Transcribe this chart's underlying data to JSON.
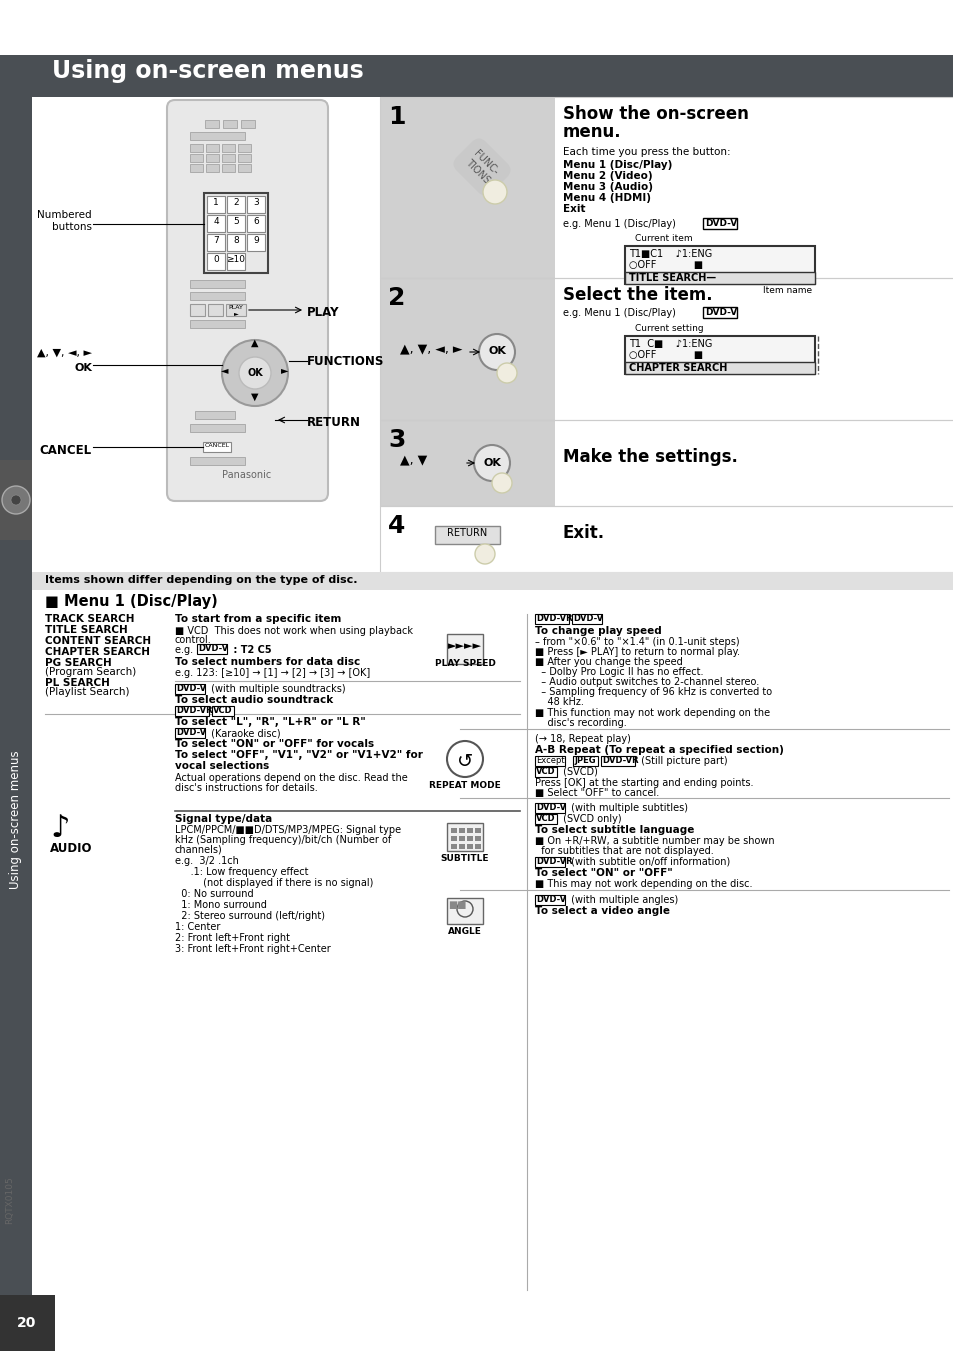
{
  "title": "Using on-screen menus",
  "title_bg": "#4a4f54",
  "title_color": "#ffffff",
  "page_bg": "#ffffff",
  "sidebar_color": "#4a4f54",
  "sidebar_text": "Using on-screen menus",
  "step1_header1": "Show the on-screen",
  "step1_header2": "menu.",
  "step1_body1": "Each time you press the button:",
  "step1_menu1": "Menu 1 (Disc/Play)",
  "step1_menu2": "Menu 2 (Video)",
  "step1_menu3": "Menu 3 (Audio)",
  "step1_menu4": "Menu 4 (HDMI)",
  "step1_exit": "Exit",
  "step1_eg": "e.g. Menu 1 (Disc/Play)",
  "step1_dvdv": "DVD-V",
  "step1_current": "Current item",
  "step1_s1": "T1■C1    ♪1:ENG",
  "step1_s2": "○OFF            ■",
  "step1_s3": "TITLE SEARCH—",
  "step1_itemname": "Item name",
  "step2_header": "Select the item.",
  "step2_eg": "e.g. Menu 1 (Disc/Play)",
  "step2_dvdv": "DVD-V",
  "step2_current": "Current setting",
  "step2_s1": "T1  C■    ♪1:ENG",
  "step2_s2": "○OFF            ■",
  "step2_s3": "CHAPTER SEARCH",
  "step3_header": "Make the settings.",
  "step4_header": "Exit.",
  "numbered_label": "Numbered\nbuttons",
  "play_label": "PLAY",
  "functions_label": "FUNCTIONS",
  "return_label": "RETURN",
  "cancel_label": "CANCEL",
  "menu1_title": "■ Menu 1 (Disc/Play)",
  "items_differ": "Items shown differ depending on the type of disc.",
  "page_number": "20",
  "rqtx": "RQTX0105",
  "gray_step": "#d0d0d0",
  "title_bg_hex": "#4a4f54",
  "note_bg": "#e8e8e8"
}
